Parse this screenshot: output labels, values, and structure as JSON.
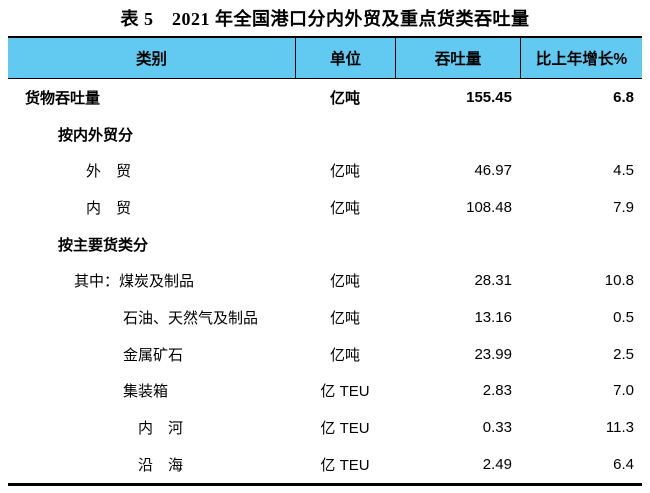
{
  "title": "表 5　2021 年全国港口分内外贸及重点货类吞吐量",
  "table": {
    "header_bg": "#62CAF0",
    "header": {
      "category": "类别",
      "unit": "单位",
      "throughput": "吞吐量",
      "growth": "比上年增长%"
    },
    "rows": [
      {
        "category": "货物吞吐量",
        "unit": "亿吨",
        "throughput": "155.45",
        "growth": "6.8",
        "bold": true,
        "indent": 0
      },
      {
        "category": "按内外贸分",
        "unit": "",
        "throughput": "",
        "growth": "",
        "bold": true,
        "indent": 1
      },
      {
        "category": "外　贸",
        "unit": "亿吨",
        "throughput": "46.97",
        "growth": "4.5",
        "bold": false,
        "indent": 2
      },
      {
        "category": "内　贸",
        "unit": "亿吨",
        "throughput": "108.48",
        "growth": "7.9",
        "bold": false,
        "indent": 2
      },
      {
        "category": "按主要货类分",
        "unit": "",
        "throughput": "",
        "growth": "",
        "bold": true,
        "indent": 1
      },
      {
        "category": "其中：煤炭及制品",
        "unit": "亿吨",
        "throughput": "28.31",
        "growth": "10.8",
        "bold": false,
        "indent": 3
      },
      {
        "category": "石油、天然气及制品",
        "unit": "亿吨",
        "throughput": "13.16",
        "growth": "0.5",
        "bold": false,
        "indent": 4
      },
      {
        "category": "金属矿石",
        "unit": "亿吨",
        "throughput": "23.99",
        "growth": "2.5",
        "bold": false,
        "indent": 4
      },
      {
        "category": "集装箱",
        "unit": "亿 TEU",
        "throughput": "2.83",
        "growth": "7.0",
        "bold": false,
        "indent": 4
      },
      {
        "category": "内　河",
        "unit": "亿 TEU",
        "throughput": "0.33",
        "growth": "11.3",
        "bold": false,
        "indent": 5
      },
      {
        "category": "沿　海",
        "unit": "亿 TEU",
        "throughput": "2.49",
        "growth": "6.4",
        "bold": false,
        "indent": 5
      }
    ]
  }
}
